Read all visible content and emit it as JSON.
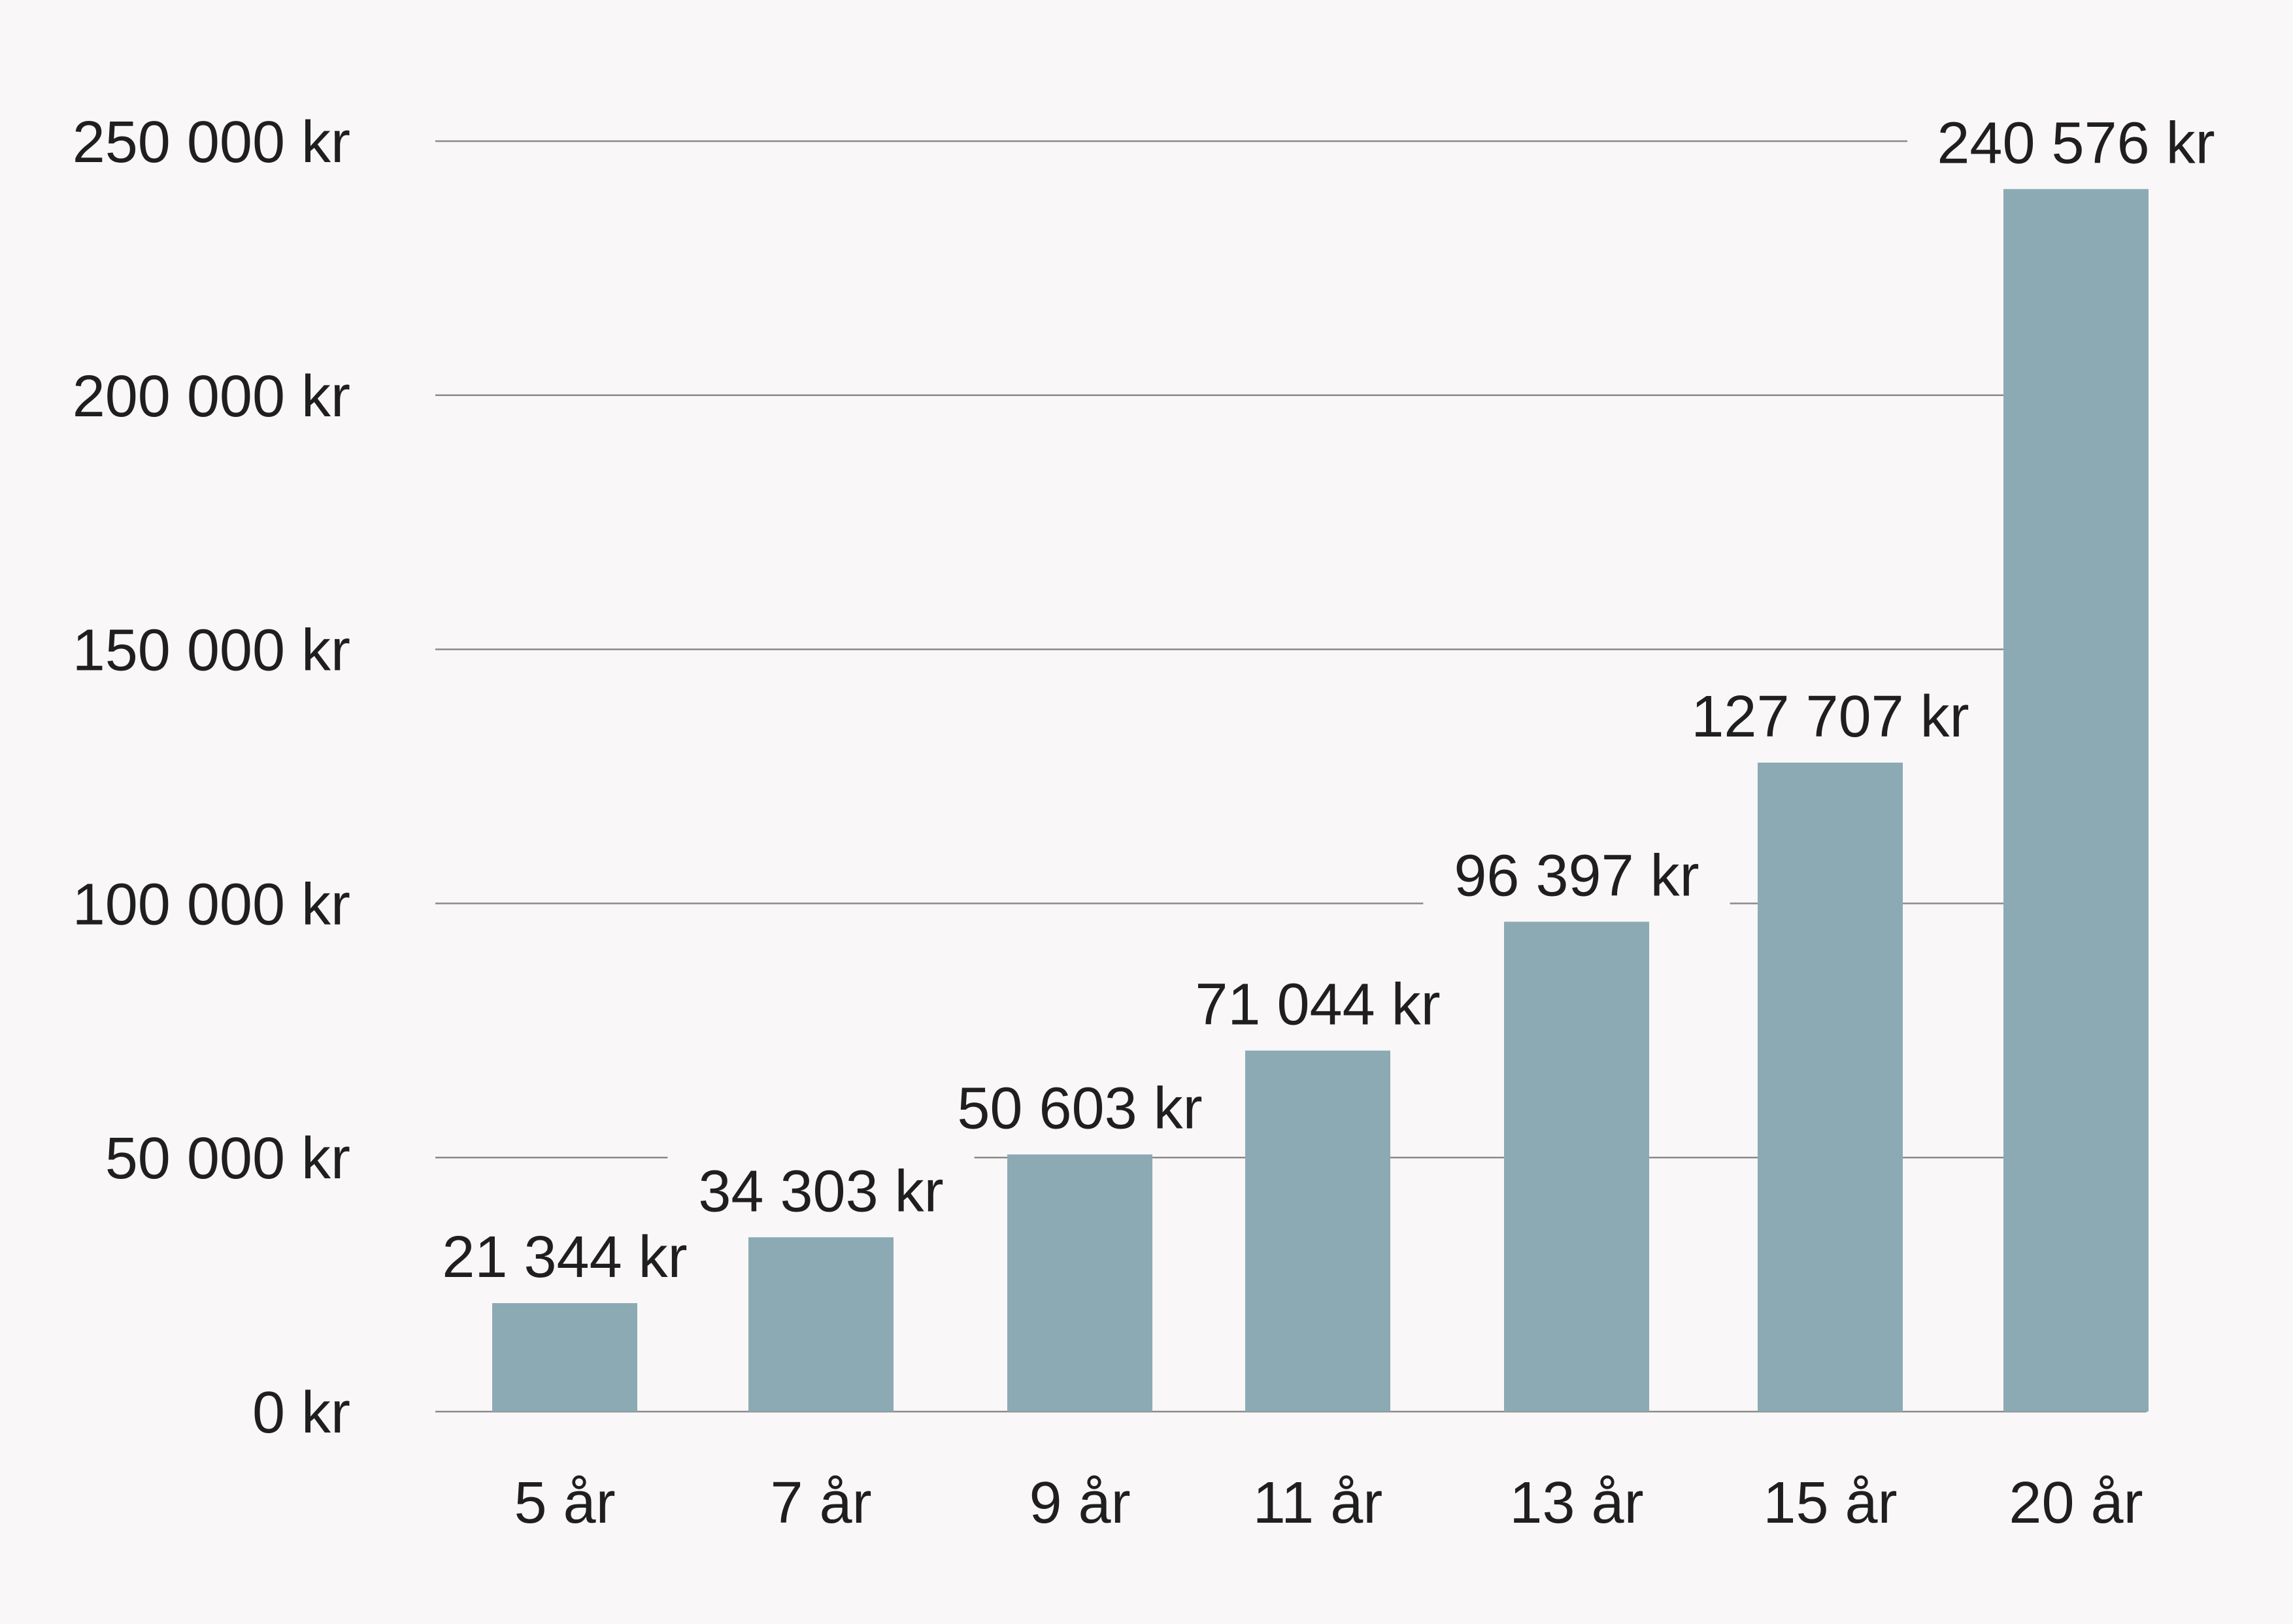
{
  "chart_data": {
    "type": "bar",
    "categories": [
      "5 år",
      "7 år",
      "9 år",
      "11 år",
      "13 år",
      "15 år",
      "20 år"
    ],
    "values": [
      21344,
      34303,
      50603,
      71044,
      96397,
      127707,
      240576
    ],
    "data_labels": [
      "21 344 kr",
      "34 303 kr",
      "50 603 kr",
      "71 044 kr",
      "96 397 kr",
      "127 707 kr",
      "240 576 kr"
    ],
    "ylim": [
      0,
      250000
    ],
    "y_ticks": [
      0,
      50000,
      100000,
      150000,
      200000,
      250000
    ],
    "y_tick_labels": [
      "0 kr",
      "50 000 kr",
      "100 000 kr",
      "150 000 kr",
      "200 000 kr",
      "250 000 kr"
    ],
    "title": "",
    "xlabel": "",
    "ylabel": "",
    "grid": true,
    "legend": "none",
    "colors": {
      "bar": "#8caab3",
      "grid": "#8a8a8a",
      "text": "#1f1f1f",
      "background": "#f9f7f8"
    }
  }
}
